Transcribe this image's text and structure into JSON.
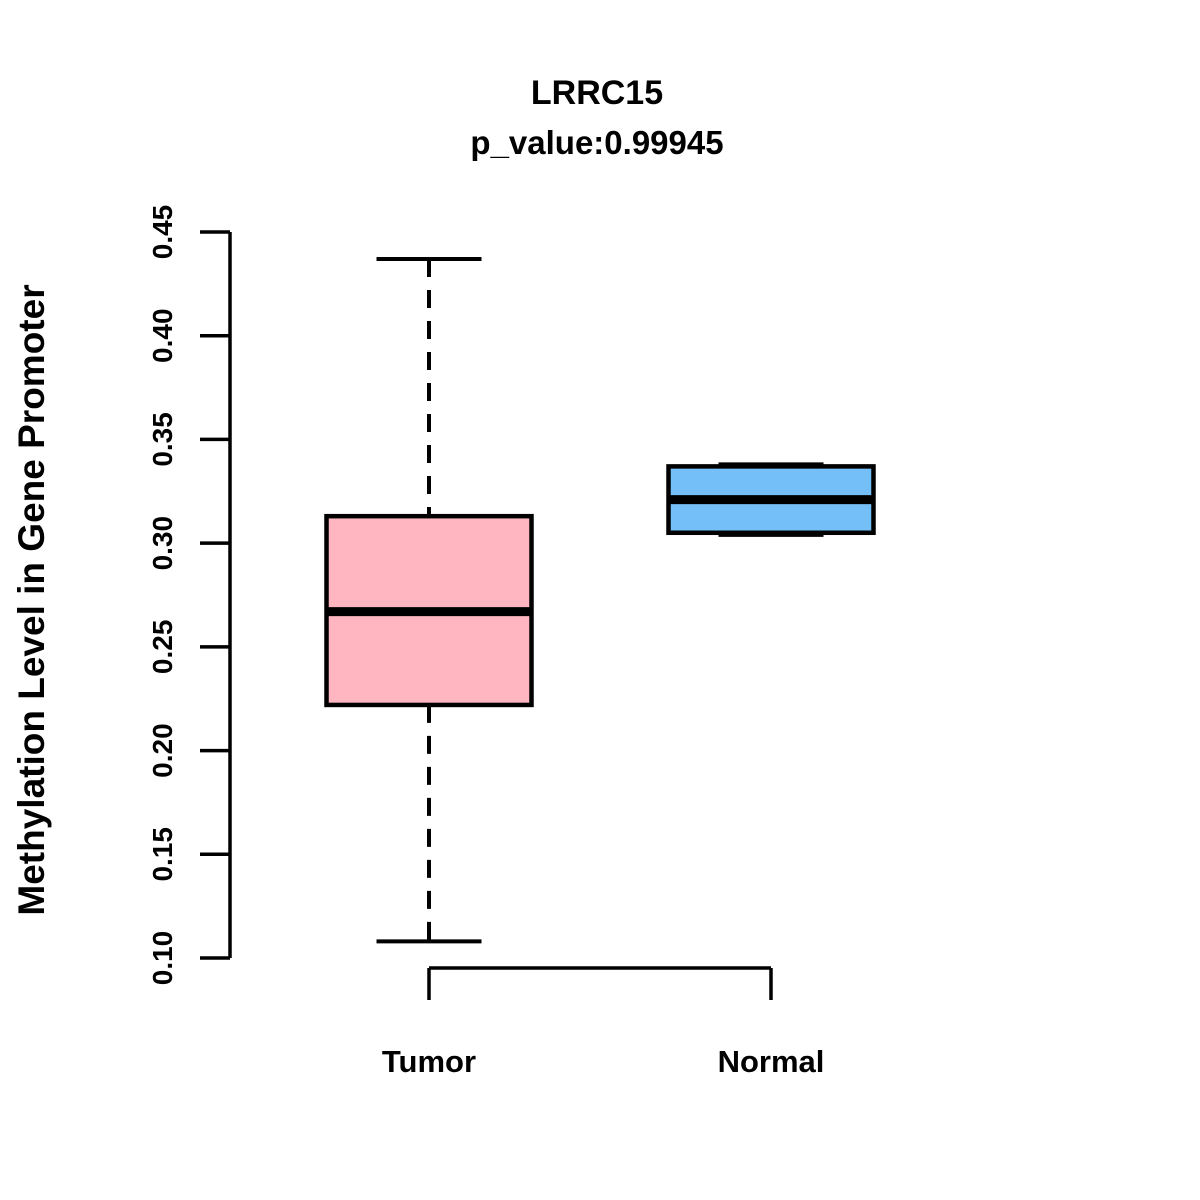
{
  "chart_data": {
    "type": "boxplot",
    "title": "LRRC15",
    "subtitle": "p_value:0.99945",
    "ylabel": "Methylation Level in Gene Promoter",
    "xlabel": "",
    "ylim": [
      0.1,
      0.45
    ],
    "yticks": [
      0.1,
      0.15,
      0.2,
      0.25,
      0.3,
      0.35,
      0.4,
      0.45
    ],
    "ytick_labels": [
      "0.10",
      "0.15",
      "0.20",
      "0.25",
      "0.30",
      "0.35",
      "0.40",
      "0.45"
    ],
    "categories": [
      "Tumor",
      "Normal"
    ],
    "grid": "off",
    "legend": "none",
    "series": [
      {
        "name": "Tumor",
        "fill_color": "#FFB6C1",
        "whisker_low": 0.108,
        "q1": 0.222,
        "median": 0.267,
        "q3": 0.313,
        "whisker_high": 0.437
      },
      {
        "name": "Normal",
        "fill_color": "#74BFF7",
        "whisker_low": 0.304,
        "q1": 0.305,
        "median": 0.321,
        "q3": 0.337,
        "whisker_high": 0.338
      }
    ],
    "colors": {
      "axis": "#000000",
      "box_border": "#000000",
      "median": "#000000",
      "background": "#FFFFFF"
    }
  }
}
